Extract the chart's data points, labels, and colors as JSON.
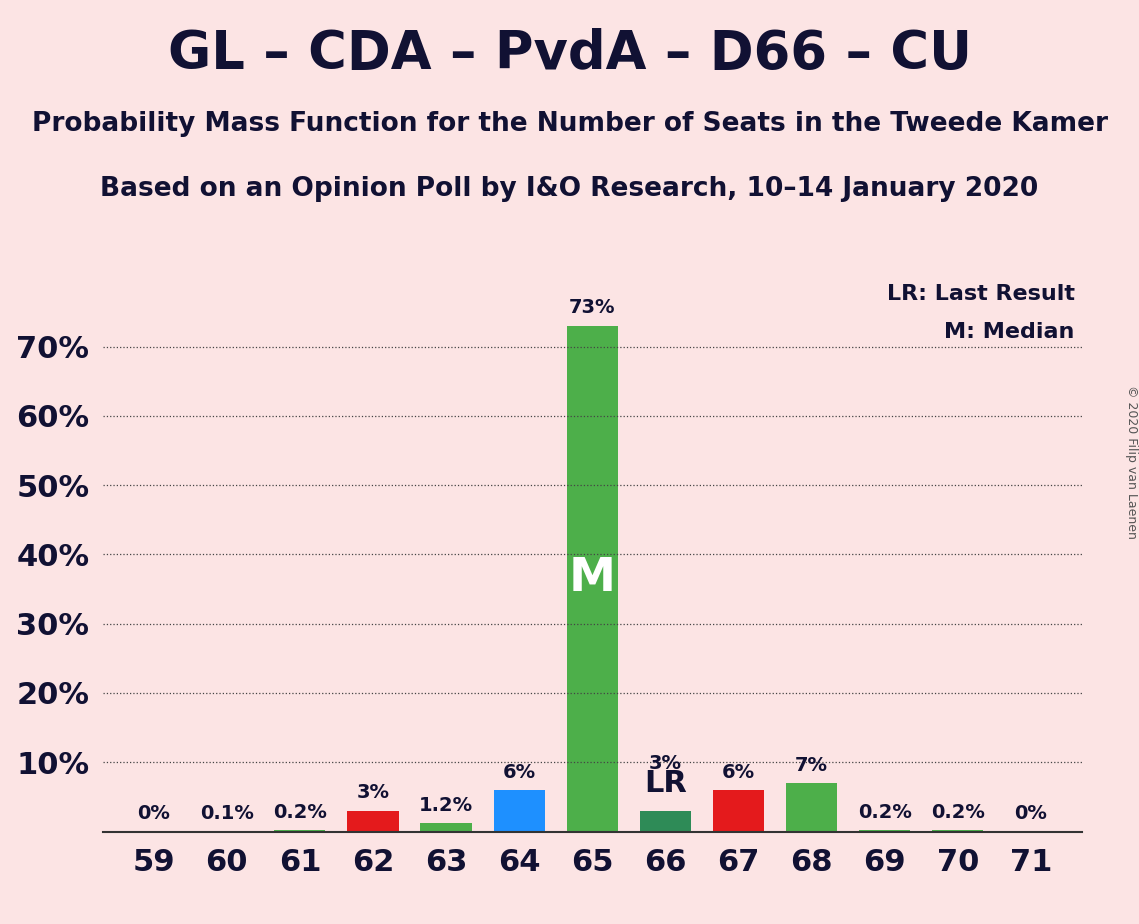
{
  "title": "GL – CDA – PvdA – D66 – CU",
  "subtitle1": "Probability Mass Function for the Number of Seats in the Tweede Kamer",
  "subtitle2": "Based on an Opinion Poll by I&O Research, 10–14 January 2020",
  "copyright": "© 2020 Filip van Laenen",
  "seats": [
    59,
    60,
    61,
    62,
    63,
    64,
    65,
    66,
    67,
    68,
    69,
    70,
    71
  ],
  "values": [
    0.0,
    0.1,
    0.2,
    3.0,
    1.2,
    6.0,
    73.0,
    3.0,
    6.0,
    7.0,
    0.2,
    0.2,
    0.0
  ],
  "labels": [
    "0%",
    "0.1%",
    "0.2%",
    "3%",
    "1.2%",
    "6%",
    "73%",
    "3%",
    "6%",
    "7%",
    "0.2%",
    "0.2%",
    "0%"
  ],
  "bar_colors": [
    "#4daf4a",
    "#4daf4a",
    "#4daf4a",
    "#e41a1c",
    "#4daf4a",
    "#1e90ff",
    "#4daf4a",
    "#2e8b57",
    "#e41a1c",
    "#4daf4a",
    "#4daf4a",
    "#4daf4a",
    "#4daf4a"
  ],
  "median_seat": 65,
  "lr_seat": 66,
  "background_color": "#fce4e4",
  "legend_lr": "LR: Last Result",
  "legend_m": "M: Median",
  "ylim_max": 80,
  "grid_yticks": [
    10,
    20,
    30,
    40,
    50,
    60,
    70
  ],
  "ytick_labels": [
    "10%",
    "20%",
    "30%",
    "40%",
    "50%",
    "60%",
    "70%"
  ],
  "title_fontsize": 38,
  "subtitle_fontsize": 19,
  "axis_tick_fontsize": 22,
  "bar_label_fontsize": 14,
  "legend_fontsize": 16,
  "m_label_fontsize": 34
}
